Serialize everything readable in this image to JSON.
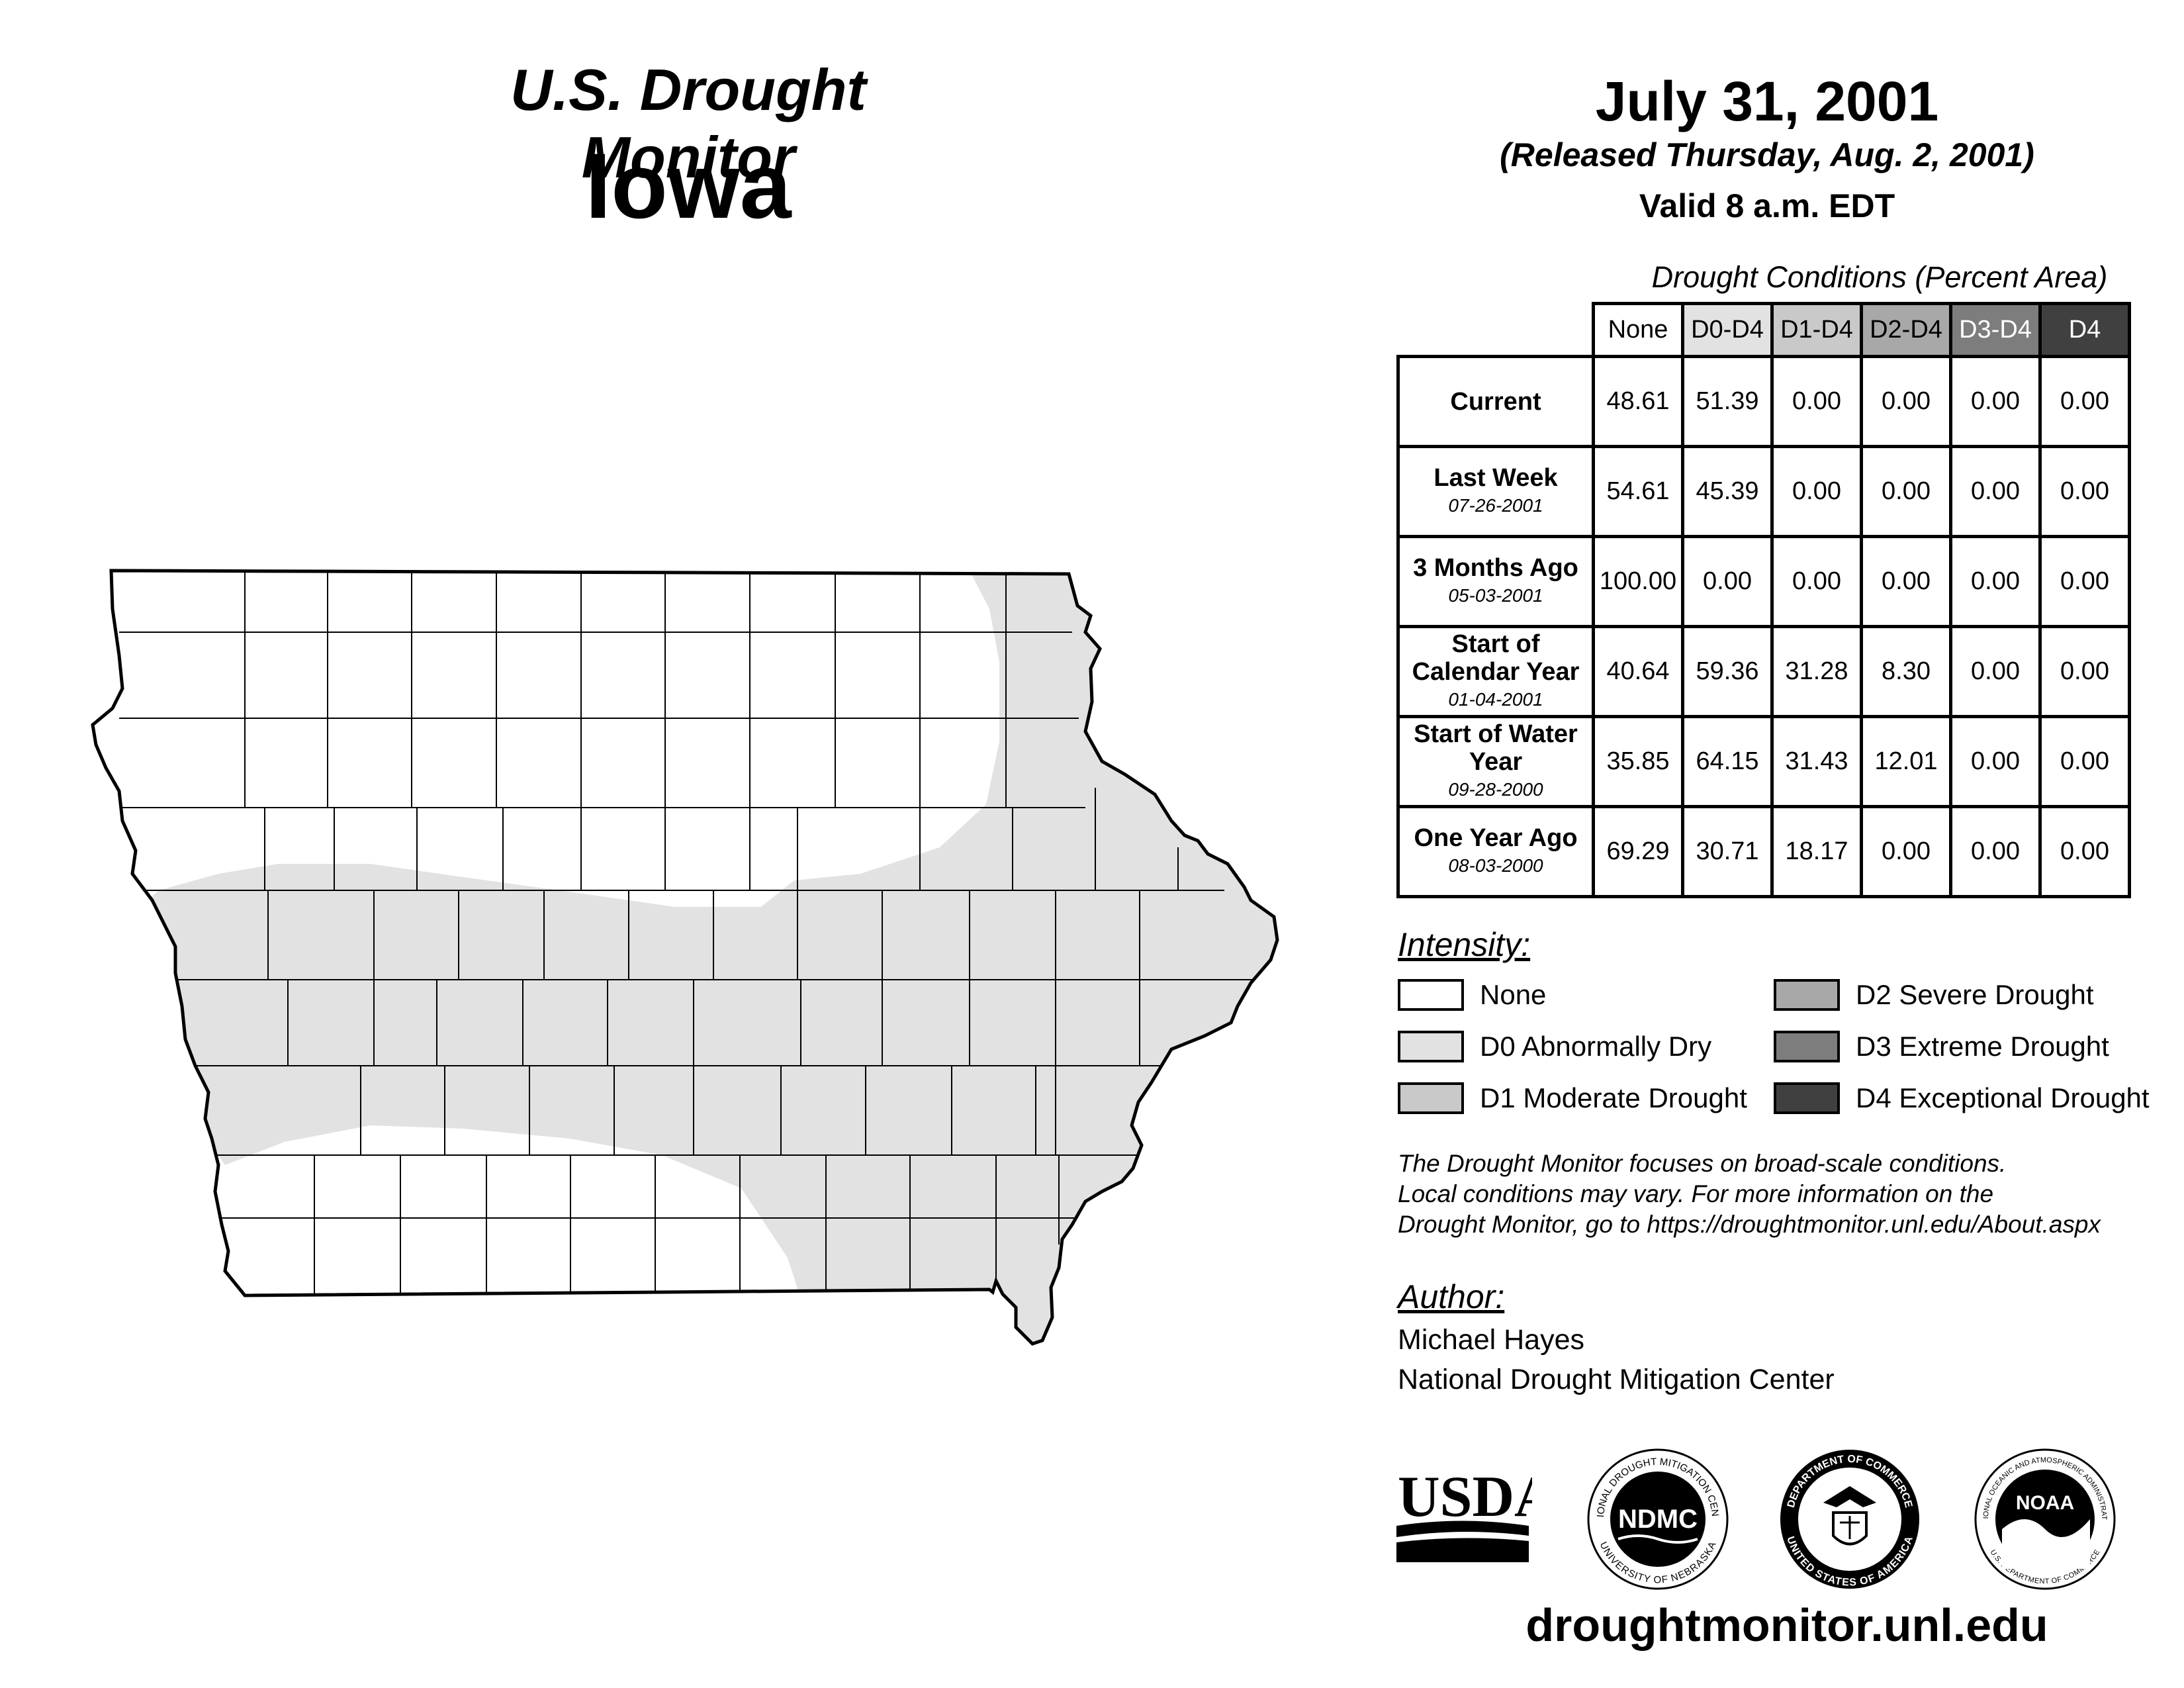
{
  "header": {
    "title": "U.S. Drought Monitor",
    "state": "Iowa",
    "date": "July 31, 2001",
    "released": "(Released Thursday, Aug. 2, 2001)",
    "valid": "Valid 8 a.m. EDT"
  },
  "conditions_table": {
    "caption": "Drought Conditions (Percent Area)",
    "columns": [
      "None",
      "D0-D4",
      "D1-D4",
      "D2-D4",
      "D3-D4",
      "D4"
    ],
    "rows": [
      {
        "label": "Current",
        "date": "",
        "values": [
          "48.61",
          "51.39",
          "0.00",
          "0.00",
          "0.00",
          "0.00"
        ]
      },
      {
        "label": "Last Week",
        "date": "07-26-2001",
        "values": [
          "54.61",
          "45.39",
          "0.00",
          "0.00",
          "0.00",
          "0.00"
        ]
      },
      {
        "label": "3 Months Ago",
        "date": "05-03-2001",
        "values": [
          "100.00",
          "0.00",
          "0.00",
          "0.00",
          "0.00",
          "0.00"
        ]
      },
      {
        "label": "Start of Calendar Year",
        "date": "01-04-2001",
        "values": [
          "40.64",
          "59.36",
          "31.28",
          "8.30",
          "0.00",
          "0.00"
        ]
      },
      {
        "label": "Start of Water Year",
        "date": "09-28-2000",
        "values": [
          "35.85",
          "64.15",
          "31.43",
          "12.01",
          "0.00",
          "0.00"
        ]
      },
      {
        "label": "One Year Ago",
        "date": "08-03-2000",
        "values": [
          "69.29",
          "30.71",
          "18.17",
          "0.00",
          "0.00",
          "0.00"
        ]
      }
    ]
  },
  "legend": {
    "title": "Intensity:",
    "items": [
      {
        "label": "None",
        "color": "#ffffff"
      },
      {
        "label": "D0 Abnormally Dry",
        "color": "#e2e2e2"
      },
      {
        "label": "D1 Moderate Drought",
        "color": "#c9c9c9"
      },
      {
        "label": "D2 Severe Drought",
        "color": "#a8a8a8"
      },
      {
        "label": "D3 Extreme Drought",
        "color": "#7d7d7d"
      },
      {
        "label": "D4 Exceptional Drought",
        "color": "#404040"
      }
    ]
  },
  "note": {
    "line1": "The Drought Monitor focuses on broad-scale conditions.",
    "line2": "Local conditions may vary. For more information on the",
    "line3": "Drought Monitor, go to https://droughtmonitor.unl.edu/About.aspx"
  },
  "author": {
    "title": "Author:",
    "name": "Michael Hayes",
    "org": "National Drought Mitigation Center"
  },
  "logos": {
    "usda": "USDA",
    "ndmc": "NDMC",
    "ndmc_ring_top": "NATIONAL DROUGHT MITIGATION CENTER",
    "ndmc_ring_bottom": "UNIVERSITY OF NEBRASKA",
    "doc_ring_top": "DEPARTMENT OF COMMERCE",
    "doc_ring_bottom": "UNITED STATES OF AMERICA",
    "noaa": "NOAA",
    "noaa_ring_top": "NATIONAL OCEANIC AND ATMOSPHERIC ADMINISTRATION",
    "noaa_ring_bottom": "U.S. DEPARTMENT OF COMMERCE"
  },
  "website": "droughtmonitor.unl.edu"
}
